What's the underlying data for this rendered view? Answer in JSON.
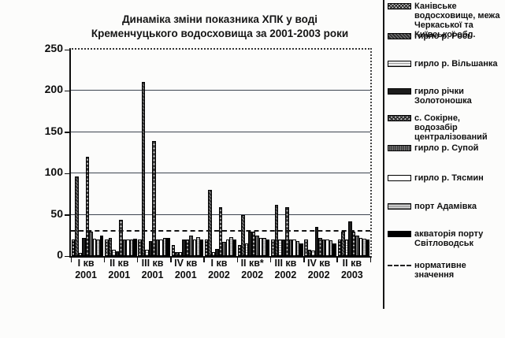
{
  "chart_data": {
    "type": "bar",
    "title": "Динаміка зміни показника ХПК у воді Кременчуцького водосховища за 2001-2003 роки",
    "title_lines": [
      "Динаміка зміни показника ХПК у воді",
      "Кременчуцького водосховища за 2001-2003 роки"
    ],
    "xlabel": "",
    "ylabel": "",
    "ylim": [
      0,
      250
    ],
    "yticks": [
      0,
      50,
      100,
      150,
      200,
      250
    ],
    "grid": true,
    "legend_position": "right",
    "categories": [
      {
        "quarter": "I кв",
        "year": "2001"
      },
      {
        "quarter": "II кв",
        "year": "2001"
      },
      {
        "quarter": "III кв",
        "year": "2001"
      },
      {
        "quarter": "IV кв",
        "year": "2001"
      },
      {
        "quarter": "I кв",
        "year": "2002"
      },
      {
        "quarter": "II кв*",
        "year": "2002"
      },
      {
        "quarter": "III кв",
        "year": "2002"
      },
      {
        "quarter": "IV кв",
        "year": "2002"
      },
      {
        "quarter": "II кв",
        "year": "2003"
      }
    ],
    "series": [
      {
        "name": "Канівське водосховище, межа Черкаської та Київської обл.",
        "pattern": "crosshatch",
        "values": [
          20,
          20,
          20,
          13,
          20,
          13,
          20,
          20,
          20
        ]
      },
      {
        "name": "гирло р. Рось",
        "pattern": "dark-dots",
        "values": [
          96,
          22,
          211,
          5,
          80,
          50,
          62,
          8,
          30
        ]
      },
      {
        "name": "гирло р. Вільшанка",
        "pattern": "light-stripe",
        "values": [
          4,
          8,
          8,
          5,
          5,
          15,
          20,
          7,
          20
        ]
      },
      {
        "name": "гирло річки Золотоношка",
        "pattern": "solid-dark",
        "values": [
          22,
          6,
          18,
          20,
          9,
          30,
          20,
          35,
          42
        ]
      },
      {
        "name": "с. Сокірне, водозабір централізований",
        "pattern": "checker",
        "values": [
          120,
          44,
          139,
          20,
          59,
          30,
          59,
          22,
          30
        ]
      },
      {
        "name": "гирло р. Супой",
        "pattern": "dark-dots2",
        "values": [
          30,
          20,
          20,
          25,
          17,
          25,
          20,
          20,
          25
        ]
      },
      {
        "name": "гирло р. Тясмин",
        "pattern": "outline-white",
        "values": [
          21,
          20,
          20,
          20,
          20,
          22,
          20,
          20,
          22
        ]
      },
      {
        "name": "порт Адамівка",
        "pattern": "fine-grid",
        "values": [
          20,
          20,
          22,
          23,
          23,
          22,
          18,
          19,
          21
        ]
      },
      {
        "name": "акваторія порту Світловодськ",
        "pattern": "solid-black",
        "values": [
          25,
          21,
          22,
          20,
          20,
          20,
          15,
          15,
          20
        ]
      }
    ],
    "normative_line": {
      "label": "нормативне значення",
      "value": 30,
      "style": "dashed"
    }
  },
  "colors": {
    "ink": "#111111",
    "grid": "#3d4450",
    "background": "#fcfcfb"
  }
}
